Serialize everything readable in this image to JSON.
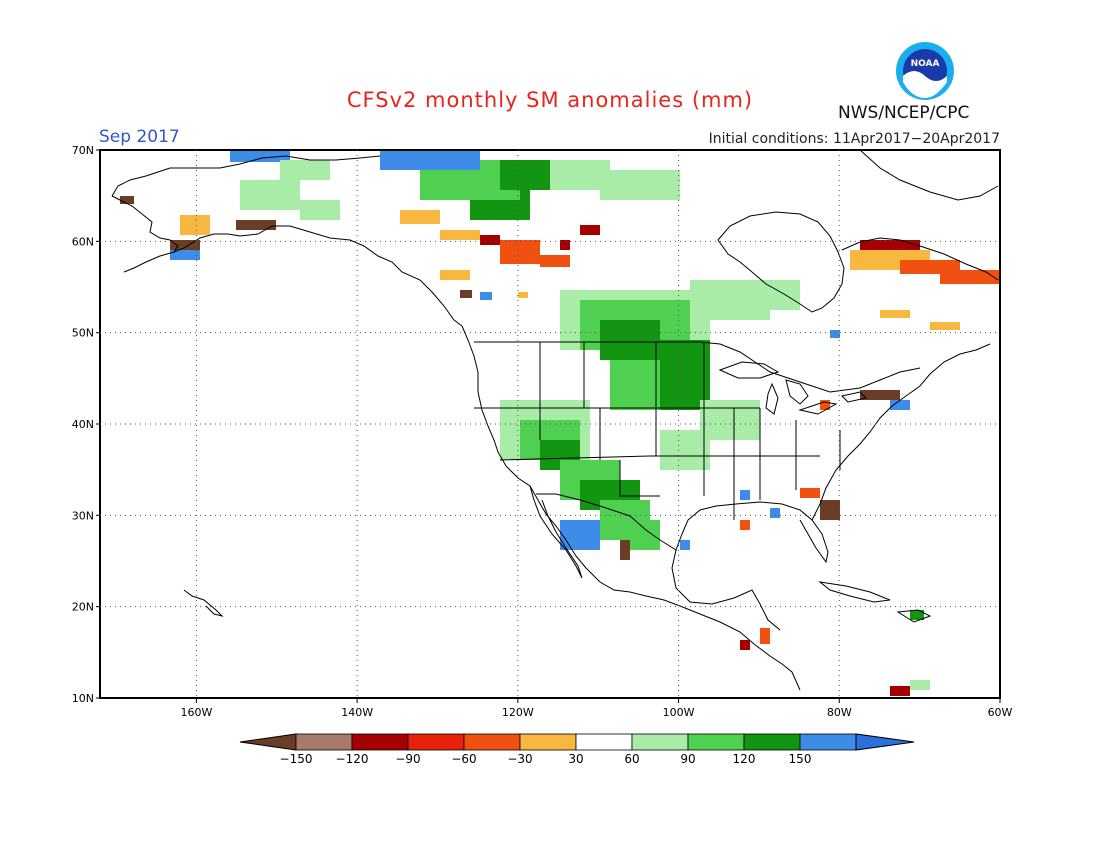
{
  "title": "CFSv2 monthly SM anomalies (mm)",
  "valid_month": "Sep 2017",
  "initial_conditions": "Initial conditions: 11Apr2017−20Apr2017",
  "organization": "NWS/NCEP/CPC",
  "logo_text": "NOAA",
  "map": {
    "lat_labels": [
      "70N",
      "60N",
      "50N",
      "40N",
      "30N",
      "20N",
      "10N"
    ],
    "lon_labels": [
      "160W",
      "140W",
      "120W",
      "100W",
      "80W",
      "60W"
    ],
    "lat_range": [
      10,
      70
    ],
    "lon_range": [
      -172,
      -60
    ],
    "grid": "dotted"
  },
  "legend": {
    "ticks": [
      "−150",
      "−120",
      "−90",
      "−60",
      "−30",
      "30",
      "60",
      "90",
      "120",
      "150"
    ],
    "colors": [
      "#6b3c26",
      "#a87a6c",
      "#a50000",
      "#e8220a",
      "#f05010",
      "#f8b840",
      "#ffffff",
      "#a8eca8",
      "#50d050",
      "#129612",
      "#3c8ce8",
      "#2c70dc"
    ]
  }
}
